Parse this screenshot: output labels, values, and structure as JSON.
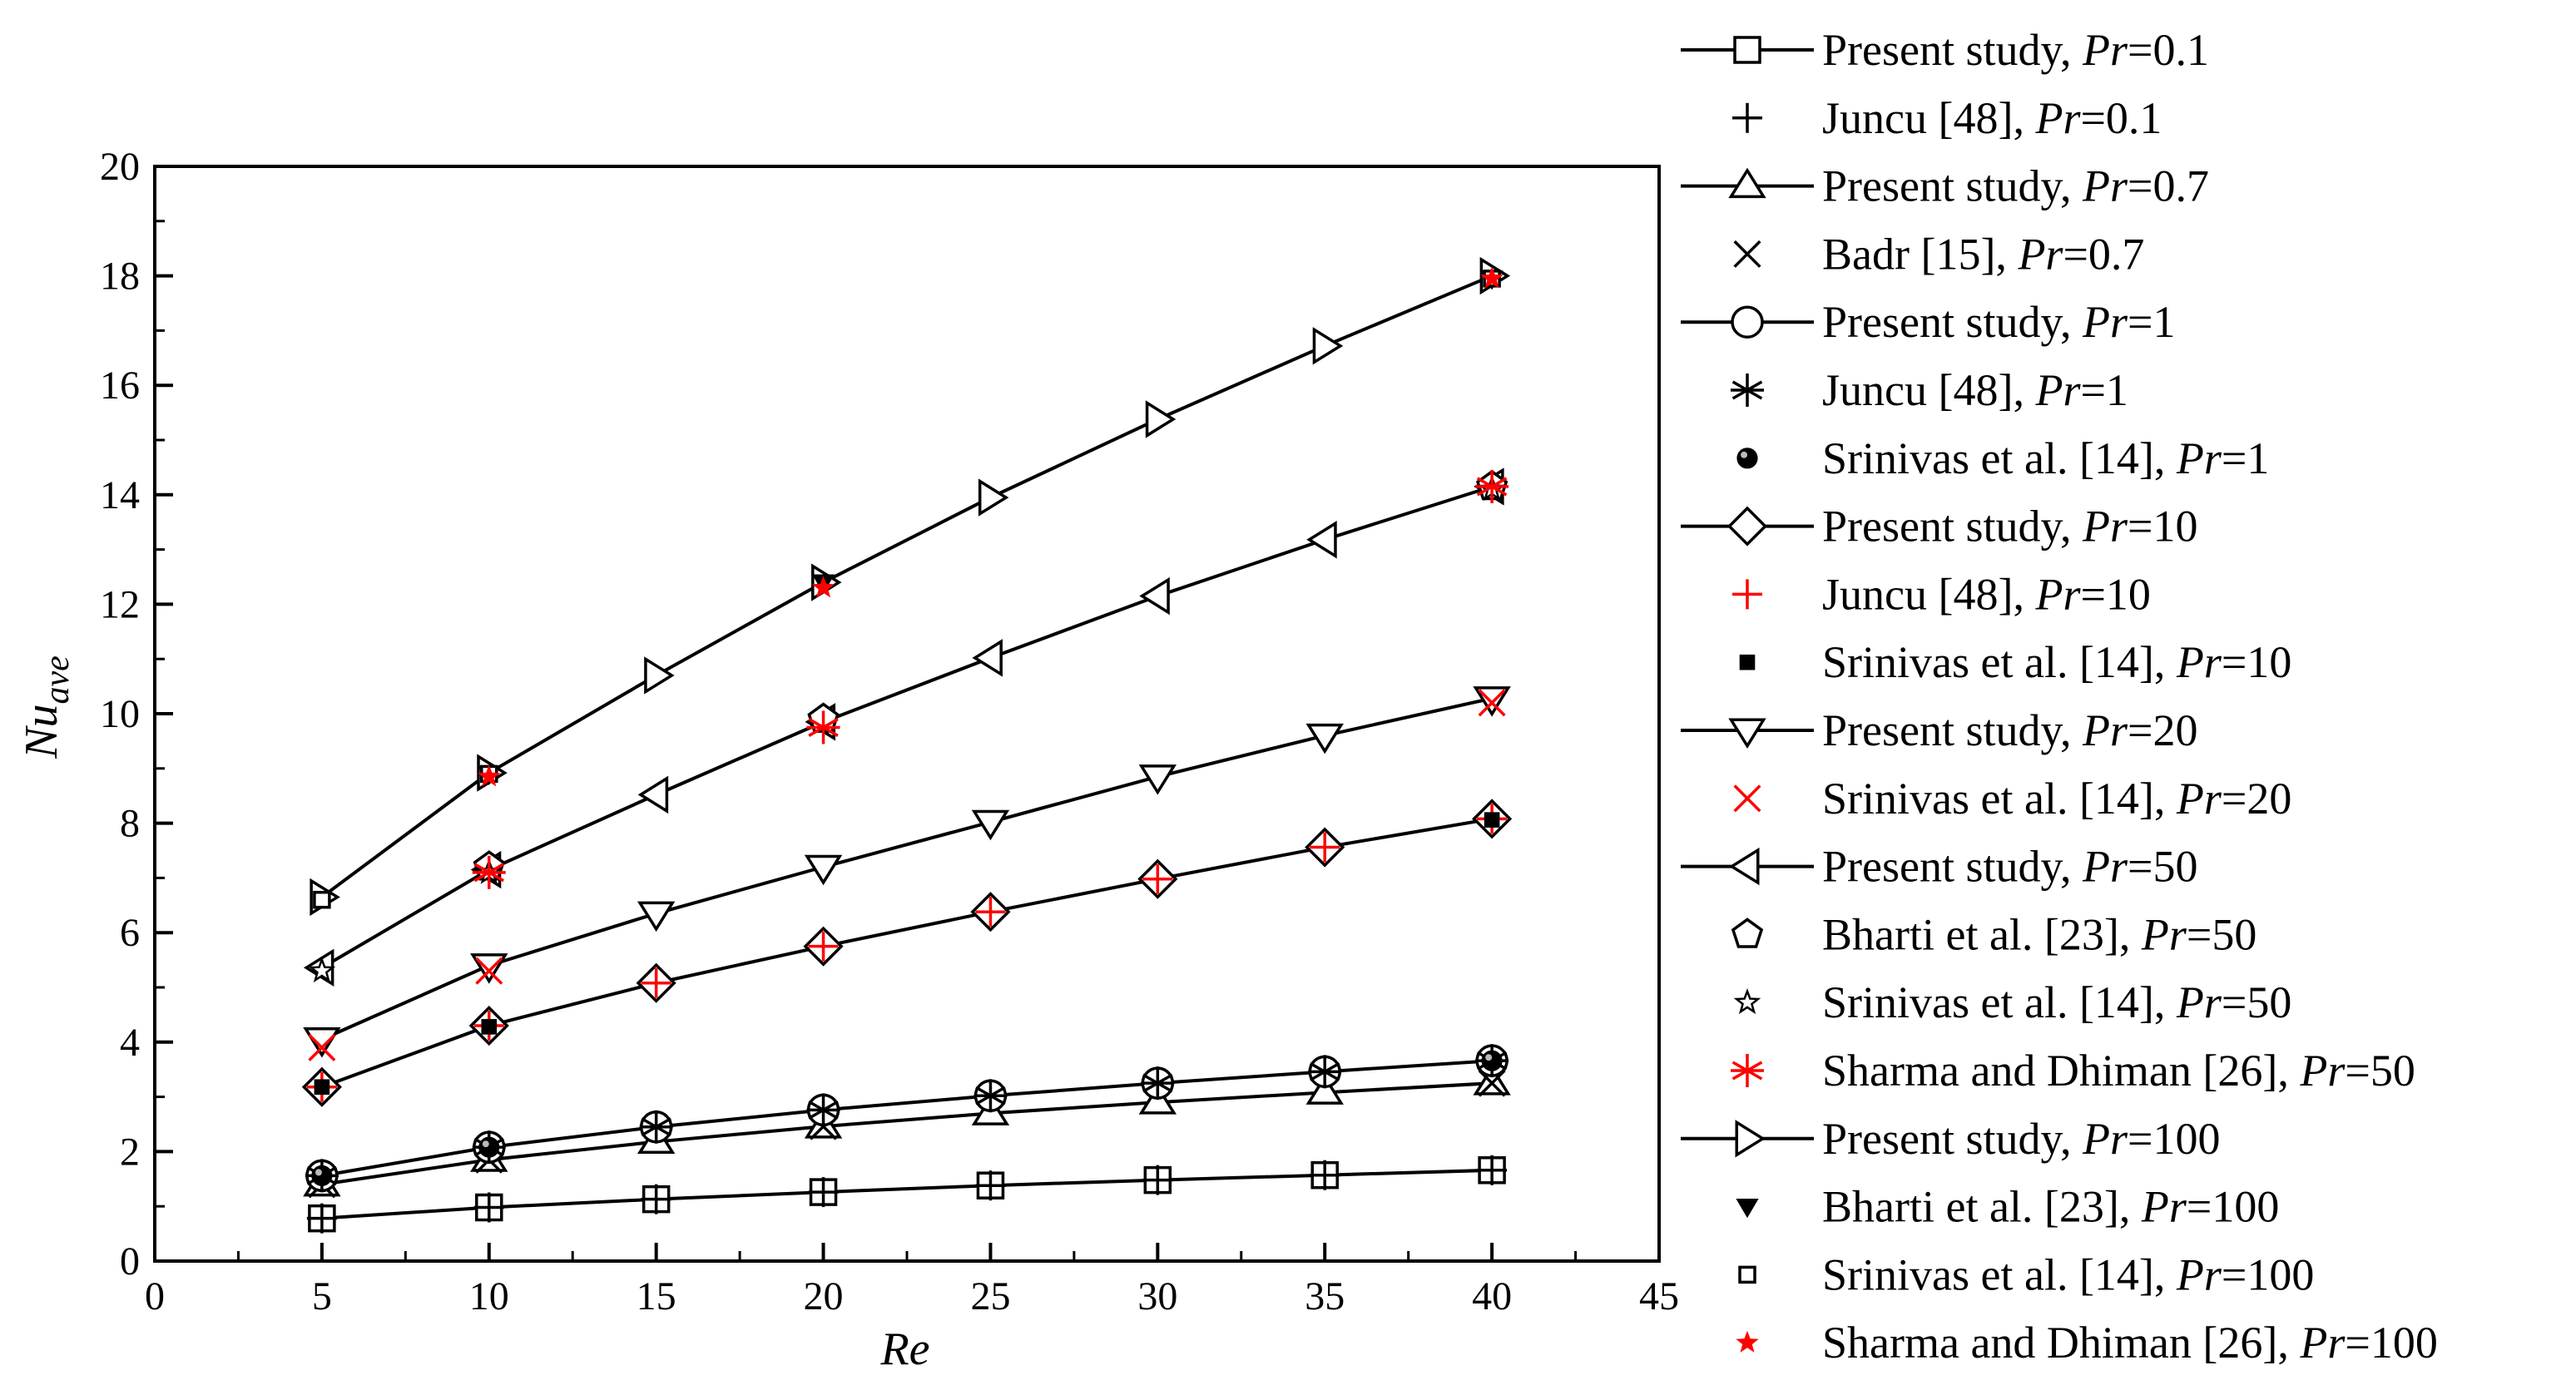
{
  "chart_data": {
    "type": "line",
    "title": "",
    "xlabel": "Re",
    "ylabel_main": "Nu",
    "ylabel_sub": "ave",
    "xlim": [
      0,
      45
    ],
    "ylim": [
      0,
      20
    ],
    "xticks": [
      0,
      5,
      10,
      15,
      20,
      25,
      30,
      35,
      40,
      45
    ],
    "yticks": [
      0,
      2,
      4,
      6,
      8,
      10,
      12,
      14,
      16,
      18,
      20
    ],
    "grid": false,
    "legend_position": "right",
    "series": [
      {
        "name": "Present study, Pr=0.1",
        "label": "Present study, ",
        "pr": "=0.1",
        "kind": "line",
        "marker": "square-open",
        "color": "#000000",
        "x": [
          5,
          10,
          15,
          20,
          25,
          30,
          35,
          40
        ],
        "y": [
          0.78,
          0.98,
          1.13,
          1.26,
          1.38,
          1.48,
          1.57,
          1.66
        ]
      },
      {
        "name": "Juncu [48], Pr=0.1",
        "label": "Juncu [48], ",
        "pr": "=0.1",
        "kind": "points",
        "marker": "plus",
        "color": "#000000",
        "x": [
          5,
          10,
          15,
          20,
          25,
          30,
          35,
          40
        ],
        "y": [
          0.78,
          0.98,
          1.13,
          1.26,
          1.38,
          1.48,
          1.57,
          1.66
        ]
      },
      {
        "name": "Present study, Pr=0.7",
        "label": "Present study, ",
        "pr": "=0.7",
        "kind": "line",
        "marker": "triangle-up-open",
        "color": "#000000",
        "x": [
          5,
          10,
          15,
          20,
          25,
          30,
          35,
          40
        ],
        "y": [
          1.4,
          1.85,
          2.18,
          2.46,
          2.7,
          2.9,
          3.08,
          3.25
        ]
      },
      {
        "name": "Badr [15], Pr=0.7",
        "label": "Badr [15], ",
        "pr": "=0.7",
        "kind": "points",
        "marker": "x",
        "color": "#000000",
        "x": [
          5,
          10,
          20,
          40
        ],
        "y": [
          1.4,
          1.85,
          2.46,
          3.25
        ]
      },
      {
        "name": "Present study, Pr=1",
        "label": "Present study, ",
        "pr": "=1",
        "kind": "line",
        "marker": "circle-open",
        "color": "#000000",
        "x": [
          5,
          10,
          15,
          20,
          25,
          30,
          35,
          40
        ],
        "y": [
          1.56,
          2.08,
          2.45,
          2.76,
          3.02,
          3.25,
          3.46,
          3.66
        ]
      },
      {
        "name": "Juncu [48], Pr=1",
        "label": "Juncu [48], ",
        "pr": "=1",
        "kind": "points",
        "marker": "asterisk",
        "color": "#000000",
        "x": [
          5,
          10,
          15,
          20,
          25,
          30,
          35,
          40
        ],
        "y": [
          1.56,
          2.08,
          2.45,
          2.76,
          3.02,
          3.25,
          3.46,
          3.66
        ]
      },
      {
        "name": "Srinivas et al. [14], Pr=1",
        "label": "Srinivas et al. [14], ",
        "pr": "=1",
        "kind": "points",
        "marker": "ball",
        "color": "#000000",
        "x": [
          5,
          10,
          40
        ],
        "y": [
          1.56,
          2.08,
          3.66
        ]
      },
      {
        "name": "Present study, Pr=10",
        "label": "Present study, ",
        "pr": "=10",
        "kind": "line",
        "marker": "diamond-open",
        "color": "#000000",
        "x": [
          5,
          10,
          15,
          20,
          25,
          30,
          35,
          40
        ],
        "y": [
          3.18,
          4.3,
          5.08,
          5.75,
          6.38,
          6.98,
          7.56,
          8.08
        ]
      },
      {
        "name": "Juncu [48], Pr=10",
        "label": "Juncu [48], ",
        "pr": "=10",
        "kind": "points",
        "marker": "plus",
        "color": "#ff0000",
        "x": [
          5,
          10,
          15,
          20,
          25,
          30,
          35,
          40
        ],
        "y": [
          3.18,
          4.3,
          5.08,
          5.75,
          6.38,
          6.98,
          7.56,
          8.08
        ]
      },
      {
        "name": "Srinivas et al. [14], Pr=10",
        "label": "Srinivas et al. [14], ",
        "pr": "=10",
        "kind": "points",
        "marker": "square-filled",
        "color": "#000000",
        "x": [
          5,
          10,
          40
        ],
        "y": [
          3.18,
          4.28,
          8.06
        ]
      },
      {
        "name": "Present study, Pr=20",
        "label": "Present study, ",
        "pr": "=20",
        "kind": "line",
        "marker": "triangle-down-open",
        "color": "#000000",
        "x": [
          5,
          10,
          15,
          20,
          25,
          30,
          35,
          40
        ],
        "y": [
          4.05,
          5.4,
          6.35,
          7.2,
          8.02,
          8.85,
          9.6,
          10.28
        ]
      },
      {
        "name": "Srinivas et al. [14], Pr=20",
        "label": "Srinivas et al. [14], ",
        "pr": "=20",
        "kind": "points",
        "marker": "x",
        "color": "#ff0000",
        "x": [
          5,
          10,
          40
        ],
        "y": [
          3.9,
          5.3,
          10.2
        ]
      },
      {
        "name": "Present study, Pr=50",
        "label": "Present study, ",
        "pr": "=50",
        "kind": "line",
        "marker": "triangle-left-open",
        "color": "#000000",
        "x": [
          5,
          10,
          15,
          20,
          25,
          30,
          35,
          40
        ],
        "y": [
          5.36,
          7.15,
          8.52,
          9.85,
          11.02,
          12.15,
          13.18,
          14.15
        ]
      },
      {
        "name": "Bharti et al. [23], Pr=50",
        "label": "Bharti et al. [23], ",
        "pr": "=50",
        "kind": "points",
        "marker": "pentagon-open",
        "color": "#000000",
        "x": [
          10,
          20,
          40
        ],
        "y": [
          7.2,
          9.9,
          14.15
        ]
      },
      {
        "name": "Srinivas et al. [14], Pr=50",
        "label": "Srinivas et al. [14], ",
        "pr": "=50",
        "kind": "points",
        "marker": "star-open",
        "color": "#000000",
        "x": [
          5,
          10,
          40
        ],
        "y": [
          5.3,
          7.1,
          14.1
        ]
      },
      {
        "name": "Sharma and Dhiman [26], Pr=50",
        "label": "Sharma and Dhiman [26], ",
        "pr": "=50",
        "kind": "points",
        "marker": "asterisk",
        "color": "#ff0000",
        "x": [
          10,
          20,
          40
        ],
        "y": [
          7.1,
          9.75,
          14.15
        ]
      },
      {
        "name": "Present study, Pr=100",
        "label": "Present study, ",
        "pr": "=100",
        "kind": "line",
        "marker": "triangle-right-open",
        "color": "#000000",
        "x": [
          5,
          10,
          15,
          20,
          25,
          30,
          35,
          40
        ],
        "y": [
          6.65,
          8.92,
          10.7,
          12.4,
          13.95,
          15.38,
          16.72,
          18.0
        ]
      },
      {
        "name": "Bharti et al. [23], Pr=100",
        "label": "Bharti et al. [23], ",
        "pr": "=100",
        "kind": "points",
        "marker": "triangle-down-filled",
        "color": "#000000",
        "x": [
          10,
          20,
          40
        ],
        "y": [
          8.9,
          12.4,
          17.95
        ]
      },
      {
        "name": "Srinivas et al. [14], Pr=100",
        "label": "Srinivas et al. [14], ",
        "pr": "=100",
        "kind": "points",
        "marker": "square-small-open",
        "color": "#000000",
        "x": [
          5,
          10,
          40
        ],
        "y": [
          6.6,
          8.9,
          17.95
        ]
      },
      {
        "name": "Sharma and Dhiman [26], Pr=100",
        "label": "Sharma and Dhiman [26], ",
        "pr": "=100",
        "kind": "points",
        "marker": "star-filled",
        "color": "#ff0000",
        "x": [
          10,
          20,
          40
        ],
        "y": [
          8.85,
          12.3,
          17.95
        ]
      }
    ]
  }
}
